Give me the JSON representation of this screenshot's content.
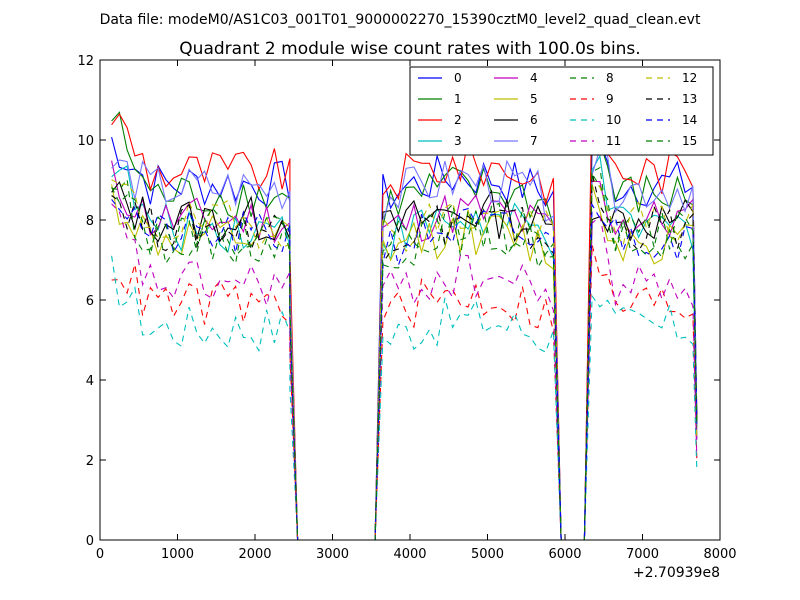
{
  "header": {
    "data_file": "Data file: modeM0/AS1C03_001T01_9000002270_15390cztM0_level2_quad_clean.evt"
  },
  "chart_data": {
    "type": "line",
    "title": "Quadrant 2 module wise count rates with 100.0s bins.",
    "xlabel": "",
    "ylabel": "",
    "x_offset_label": "+2.70939e8",
    "xlim": [
      0,
      8000
    ],
    "ylim": [
      0,
      12
    ],
    "xticks": [
      0,
      1000,
      2000,
      3000,
      4000,
      5000,
      6000,
      7000,
      8000
    ],
    "yticks": [
      0,
      2,
      4,
      6,
      8,
      10,
      12
    ],
    "grid": false,
    "legend_position": "top-right",
    "legend_columns": 4,
    "segments": [
      {
        "start": 150,
        "end": 2450,
        "step": 100,
        "pre_end_edge": [
          2450,
          2550
        ],
        "pre_end_frac": 0.75
      },
      {
        "start": 3650,
        "end": 5850,
        "step": 100,
        "pre_start_edge": [
          3550,
          3650
        ],
        "post_end_edge": [
          5950,
          6050
        ]
      },
      {
        "start": 6350,
        "end": 7650,
        "step": 100,
        "pre_start_edge": [
          6250,
          6350
        ],
        "post_end_value_frac": 0.35
      }
    ],
    "gap_value": 0,
    "series": [
      {
        "name": "0",
        "color": "#0000ff",
        "style": "solid",
        "level": 8.9,
        "start_level": 10.0
      },
      {
        "name": "1",
        "color": "#008000",
        "style": "solid",
        "level": 8.6,
        "start_level": 10.6
      },
      {
        "name": "2",
        "color": "#ff0000",
        "style": "solid",
        "level": 9.2,
        "start_level": 10.7
      },
      {
        "name": "3",
        "color": "#00bfbf",
        "style": "solid",
        "level": 7.8,
        "start_level": 9.6
      },
      {
        "name": "4",
        "color": "#bf00bf",
        "style": "solid",
        "level": 8.0,
        "start_level": 9.0
      },
      {
        "name": "5",
        "color": "#bfbf00",
        "style": "solid",
        "level": 7.5,
        "start_level": 8.6
      },
      {
        "name": "6",
        "color": "#000000",
        "style": "solid",
        "level": 8.0,
        "start_level": 8.6
      },
      {
        "name": "7",
        "color": "#7777ff",
        "style": "solid",
        "level": 8.8,
        "start_level": 9.4
      },
      {
        "name": "8",
        "color": "#008000",
        "style": "dashed",
        "level": 7.5,
        "start_level": 9.1
      },
      {
        "name": "9",
        "color": "#ff0000",
        "style": "dashed",
        "level": 5.9,
        "start_level": 7.0
      },
      {
        "name": "10",
        "color": "#00bfbf",
        "style": "dashed",
        "level": 5.3,
        "start_level": 6.6
      },
      {
        "name": "11",
        "color": "#bf00bf",
        "style": "dashed",
        "level": 6.4,
        "start_level": 8.1
      },
      {
        "name": "12",
        "color": "#bfbf00",
        "style": "dashed",
        "level": 7.9,
        "start_level": 8.9
      },
      {
        "name": "13",
        "color": "#000000",
        "style": "dashed",
        "level": 7.8,
        "start_level": 8.7
      },
      {
        "name": "14",
        "color": "#0000ff",
        "style": "dashed",
        "level": 7.6,
        "start_level": 8.8
      },
      {
        "name": "15",
        "color": "#008000",
        "style": "dashed",
        "level": 7.7,
        "start_level": 9.3
      }
    ]
  }
}
